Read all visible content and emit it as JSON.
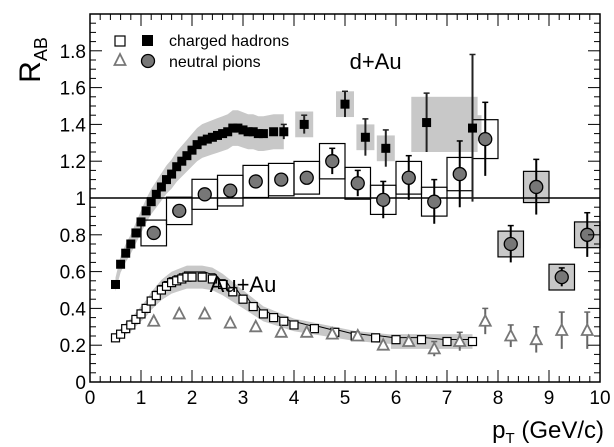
{
  "chart_data": {
    "type": "scatter",
    "xlabel_main": "p",
    "xlabel_sub": "T",
    "xlabel_unit": " (GeV/c)",
    "ylabel_main": "R",
    "ylabel_sub": "AB",
    "xlim": [
      0,
      10
    ],
    "ylim": [
      0,
      2.0
    ],
    "x_ticks": [
      0,
      1,
      2,
      3,
      4,
      5,
      6,
      7,
      8,
      9,
      10
    ],
    "y_ticks": [
      0,
      0.2,
      0.4,
      0.6,
      0.8,
      1,
      1.2,
      1.4,
      1.6,
      1.8
    ],
    "x_tick_labels": [
      "0",
      "1",
      "2",
      "3",
      "4",
      "5",
      "6",
      "7",
      "8",
      "9",
      "10"
    ],
    "y_tick_labels": [
      "0",
      "0.2",
      "0.4",
      "0.6",
      "0.8",
      "1",
      "1.2",
      "1.4",
      "1.6",
      "1.8"
    ],
    "reference_line": 1,
    "legend": {
      "placement": "top-left",
      "entries": [
        {
          "label": "charged hadrons",
          "markers": [
            "open-square",
            "filled-square"
          ]
        },
        {
          "label": "neutral pions",
          "markers": [
            "open-triangle",
            "filled-circle"
          ]
        }
      ]
    },
    "annotations": [
      {
        "text": "d+Au",
        "x": 5.6,
        "y": 1.7
      },
      {
        "text": "Au+Au",
        "x": 3.0,
        "y": 0.49
      }
    ],
    "series": [
      {
        "name": "charged hadrons",
        "system": "d+Au",
        "marker": "filled-square",
        "points": [
          [
            0.5,
            0.53
          ],
          [
            0.6,
            0.64
          ],
          [
            0.7,
            0.7
          ],
          [
            0.8,
            0.75
          ],
          [
            0.9,
            0.81
          ],
          [
            1.0,
            0.87
          ],
          [
            1.1,
            0.93
          ],
          [
            1.2,
            0.98
          ],
          [
            1.3,
            1.02
          ],
          [
            1.4,
            1.06
          ],
          [
            1.5,
            1.1
          ],
          [
            1.6,
            1.13
          ],
          [
            1.7,
            1.17
          ],
          [
            1.8,
            1.2
          ],
          [
            1.9,
            1.23
          ],
          [
            2.0,
            1.26
          ],
          [
            2.1,
            1.29
          ],
          [
            2.2,
            1.31
          ],
          [
            2.3,
            1.32
          ],
          [
            2.4,
            1.33
          ],
          [
            2.5,
            1.34
          ],
          [
            2.6,
            1.35
          ],
          [
            2.7,
            1.36
          ],
          [
            2.8,
            1.38
          ],
          [
            2.9,
            1.38
          ],
          [
            3.0,
            1.37
          ],
          [
            3.1,
            1.36
          ],
          [
            3.2,
            1.36
          ],
          [
            3.3,
            1.35
          ],
          [
            3.4,
            1.35
          ],
          [
            3.6,
            1.36
          ],
          [
            3.8,
            1.36
          ],
          [
            4.2,
            1.4
          ],
          [
            5.0,
            1.51
          ],
          [
            5.4,
            1.33
          ],
          [
            5.8,
            1.27
          ],
          [
            6.6,
            1.41
          ],
          [
            7.5,
            1.38
          ]
        ],
        "error_bars": [
          [
            3.8,
            0.04
          ],
          [
            4.2,
            0.05
          ],
          [
            5.0,
            0.07
          ],
          [
            5.4,
            0.1
          ],
          [
            5.8,
            0.1
          ],
          [
            6.6,
            0.16
          ],
          [
            7.5,
            0.4
          ]
        ]
      },
      {
        "name": "neutral pions",
        "system": "d+Au",
        "marker": "filled-circle",
        "points": [
          [
            1.25,
            0.81
          ],
          [
            1.75,
            0.93
          ],
          [
            2.25,
            1.02
          ],
          [
            2.75,
            1.04
          ],
          [
            3.25,
            1.09
          ],
          [
            3.75,
            1.1
          ],
          [
            4.25,
            1.11
          ],
          [
            4.75,
            1.2
          ],
          [
            5.25,
            1.08
          ],
          [
            5.75,
            0.99
          ],
          [
            6.25,
            1.11
          ],
          [
            6.75,
            0.98
          ],
          [
            7.25,
            1.13
          ],
          [
            7.75,
            1.32
          ],
          [
            8.25,
            0.75
          ],
          [
            8.75,
            1.06
          ],
          [
            9.25,
            0.57
          ],
          [
            9.75,
            0.8
          ]
        ],
        "error_bars": [
          [
            4.75,
            0.07
          ],
          [
            5.25,
            0.07
          ],
          [
            5.75,
            0.1
          ],
          [
            6.25,
            0.12
          ],
          [
            6.75,
            0.12
          ],
          [
            7.25,
            0.18
          ],
          [
            7.75,
            0.2
          ],
          [
            8.25,
            0.1
          ],
          [
            8.75,
            0.15
          ],
          [
            9.25,
            0.05
          ],
          [
            9.75,
            0.12
          ]
        ]
      },
      {
        "name": "charged hadrons",
        "system": "Au+Au",
        "marker": "open-square",
        "points": [
          [
            0.5,
            0.24
          ],
          [
            0.6,
            0.26
          ],
          [
            0.7,
            0.29
          ],
          [
            0.8,
            0.31
          ],
          [
            0.9,
            0.34
          ],
          [
            1.0,
            0.37
          ],
          [
            1.1,
            0.4
          ],
          [
            1.2,
            0.44
          ],
          [
            1.3,
            0.47
          ],
          [
            1.4,
            0.5
          ],
          [
            1.5,
            0.52
          ],
          [
            1.6,
            0.54
          ],
          [
            1.7,
            0.55
          ],
          [
            1.8,
            0.56
          ],
          [
            1.9,
            0.57
          ],
          [
            2.0,
            0.57
          ],
          [
            2.2,
            0.57
          ],
          [
            2.4,
            0.56
          ],
          [
            2.6,
            0.53
          ],
          [
            2.8,
            0.49
          ],
          [
            3.0,
            0.45
          ],
          [
            3.2,
            0.41
          ],
          [
            3.4,
            0.37
          ],
          [
            3.6,
            0.35
          ],
          [
            3.8,
            0.33
          ],
          [
            4.0,
            0.31
          ],
          [
            4.4,
            0.29
          ],
          [
            4.8,
            0.27
          ],
          [
            5.2,
            0.25
          ],
          [
            5.6,
            0.24
          ],
          [
            6.0,
            0.23
          ],
          [
            6.5,
            0.23
          ],
          [
            7.0,
            0.22
          ],
          [
            7.5,
            0.22
          ]
        ]
      },
      {
        "name": "neutral pions",
        "system": "Au+Au",
        "marker": "open-triangle",
        "points": [
          [
            1.25,
            0.33
          ],
          [
            1.75,
            0.37
          ],
          [
            2.25,
            0.37
          ],
          [
            2.75,
            0.32
          ],
          [
            3.25,
            0.3
          ],
          [
            3.75,
            0.27
          ],
          [
            4.25,
            0.27
          ],
          [
            4.75,
            0.26
          ],
          [
            5.25,
            0.25
          ],
          [
            5.75,
            0.2
          ],
          [
            6.25,
            0.22
          ],
          [
            6.75,
            0.18
          ],
          [
            7.25,
            0.22
          ],
          [
            7.75,
            0.33
          ],
          [
            8.25,
            0.25
          ],
          [
            8.75,
            0.23
          ],
          [
            9.25,
            0.28
          ],
          [
            9.75,
            0.28
          ]
        ],
        "error_bars": [
          [
            6.75,
            0.04
          ],
          [
            7.25,
            0.05
          ],
          [
            7.75,
            0.07
          ],
          [
            8.25,
            0.06
          ],
          [
            8.75,
            0.07
          ],
          [
            9.25,
            0.1
          ],
          [
            9.75,
            0.1
          ]
        ]
      }
    ]
  }
}
